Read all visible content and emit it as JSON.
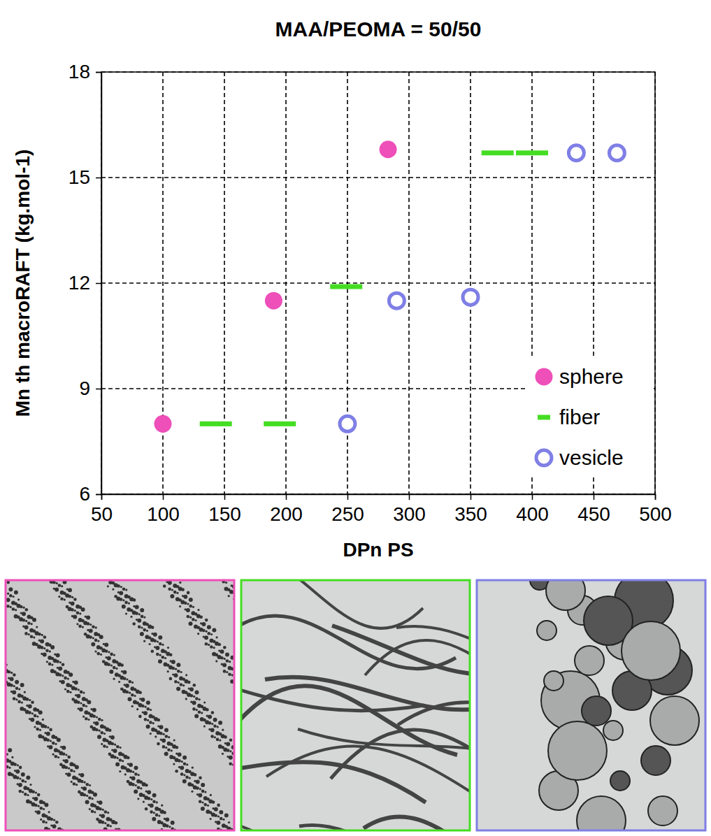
{
  "chart_data": {
    "type": "scatter",
    "title": "MAA/PEOMA = 50/50",
    "x_label": "DPn PS",
    "y_label": "Mn th macroRAFT (kg.mol-1)",
    "xlim": [
      50,
      500
    ],
    "xticks": [
      50,
      100,
      150,
      200,
      250,
      300,
      350,
      400,
      450,
      500
    ],
    "ylim": [
      6,
      18
    ],
    "yticks": [
      6,
      9,
      12,
      15,
      18
    ],
    "grid": true,
    "legend": "lower right",
    "series": [
      {
        "name": "sphere",
        "color": "#ee4fb9",
        "marker": "circle",
        "x": [
          100,
          190,
          283
        ],
        "values": [
          8,
          11.5,
          15.8
        ]
      },
      {
        "name": "fiber",
        "color": "#44dd22",
        "marker": "dash",
        "x": [
          143,
          195,
          249,
          372,
          400
        ],
        "values": [
          8,
          8,
          11.9,
          15.7,
          15.7
        ]
      },
      {
        "name": "vesicle",
        "color": "#7f7fe6",
        "marker": "open_circle",
        "x": [
          250,
          290,
          350,
          436,
          469
        ],
        "values": [
          8,
          11.5,
          11.6,
          15.7,
          15.7
        ]
      }
    ]
  }
}
